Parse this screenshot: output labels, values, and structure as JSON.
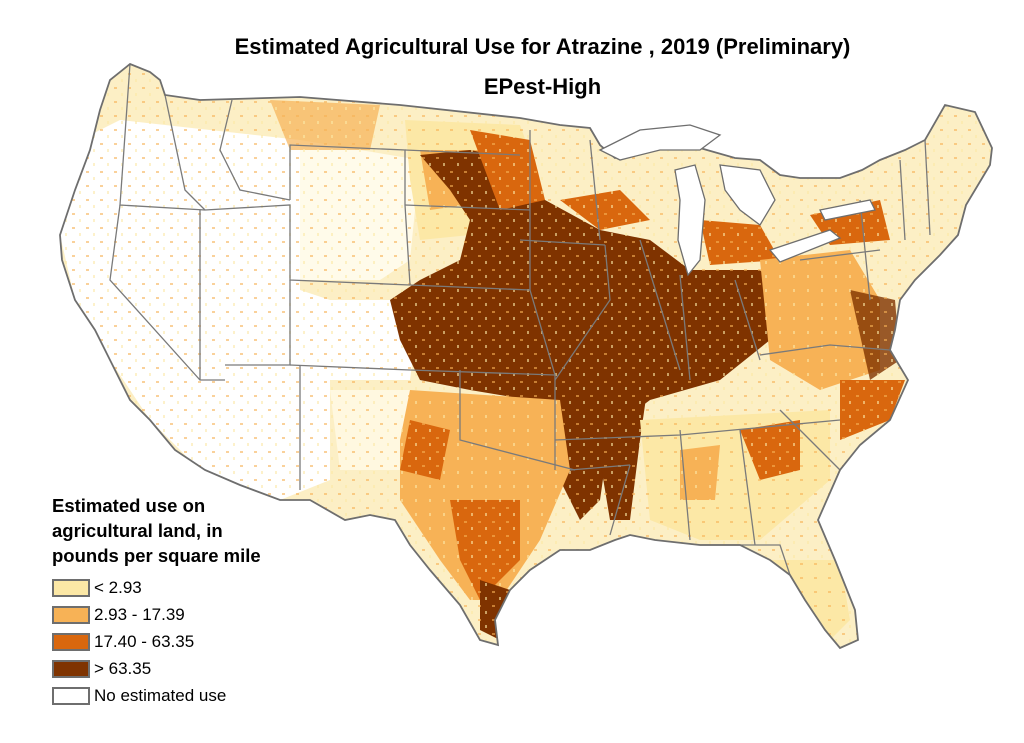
{
  "map": {
    "title_line1": "Estimated Agricultural Use for Atrazine , 2019 (Preliminary)",
    "title_line2": "EPest-High",
    "outline_color": "#6e6e6e",
    "colors": {
      "none": "#ffffff",
      "low": "#fce8a6",
      "mid": "#f7b256",
      "high": "#d9670e",
      "very_high": "#7f3300"
    }
  },
  "legend": {
    "title_lines": [
      "Estimated use on",
      "agricultural land, in",
      "pounds per square mile"
    ],
    "items": [
      {
        "label": "< 2.93",
        "color": "#fce8a6",
        "border": "#6e6e6e"
      },
      {
        "label": "2.93 - 17.39",
        "color": "#f7b256",
        "border": "#6e6e6e"
      },
      {
        "label": "17.40 - 63.35",
        "color": "#d9670e",
        "border": "#6e6e6e"
      },
      {
        "label": "> 63.35",
        "color": "#7f3300",
        "border": "#6e6e6e"
      },
      {
        "label": "No estimated use",
        "color": "#ffffff",
        "border": "#6e6e6e"
      }
    ]
  }
}
